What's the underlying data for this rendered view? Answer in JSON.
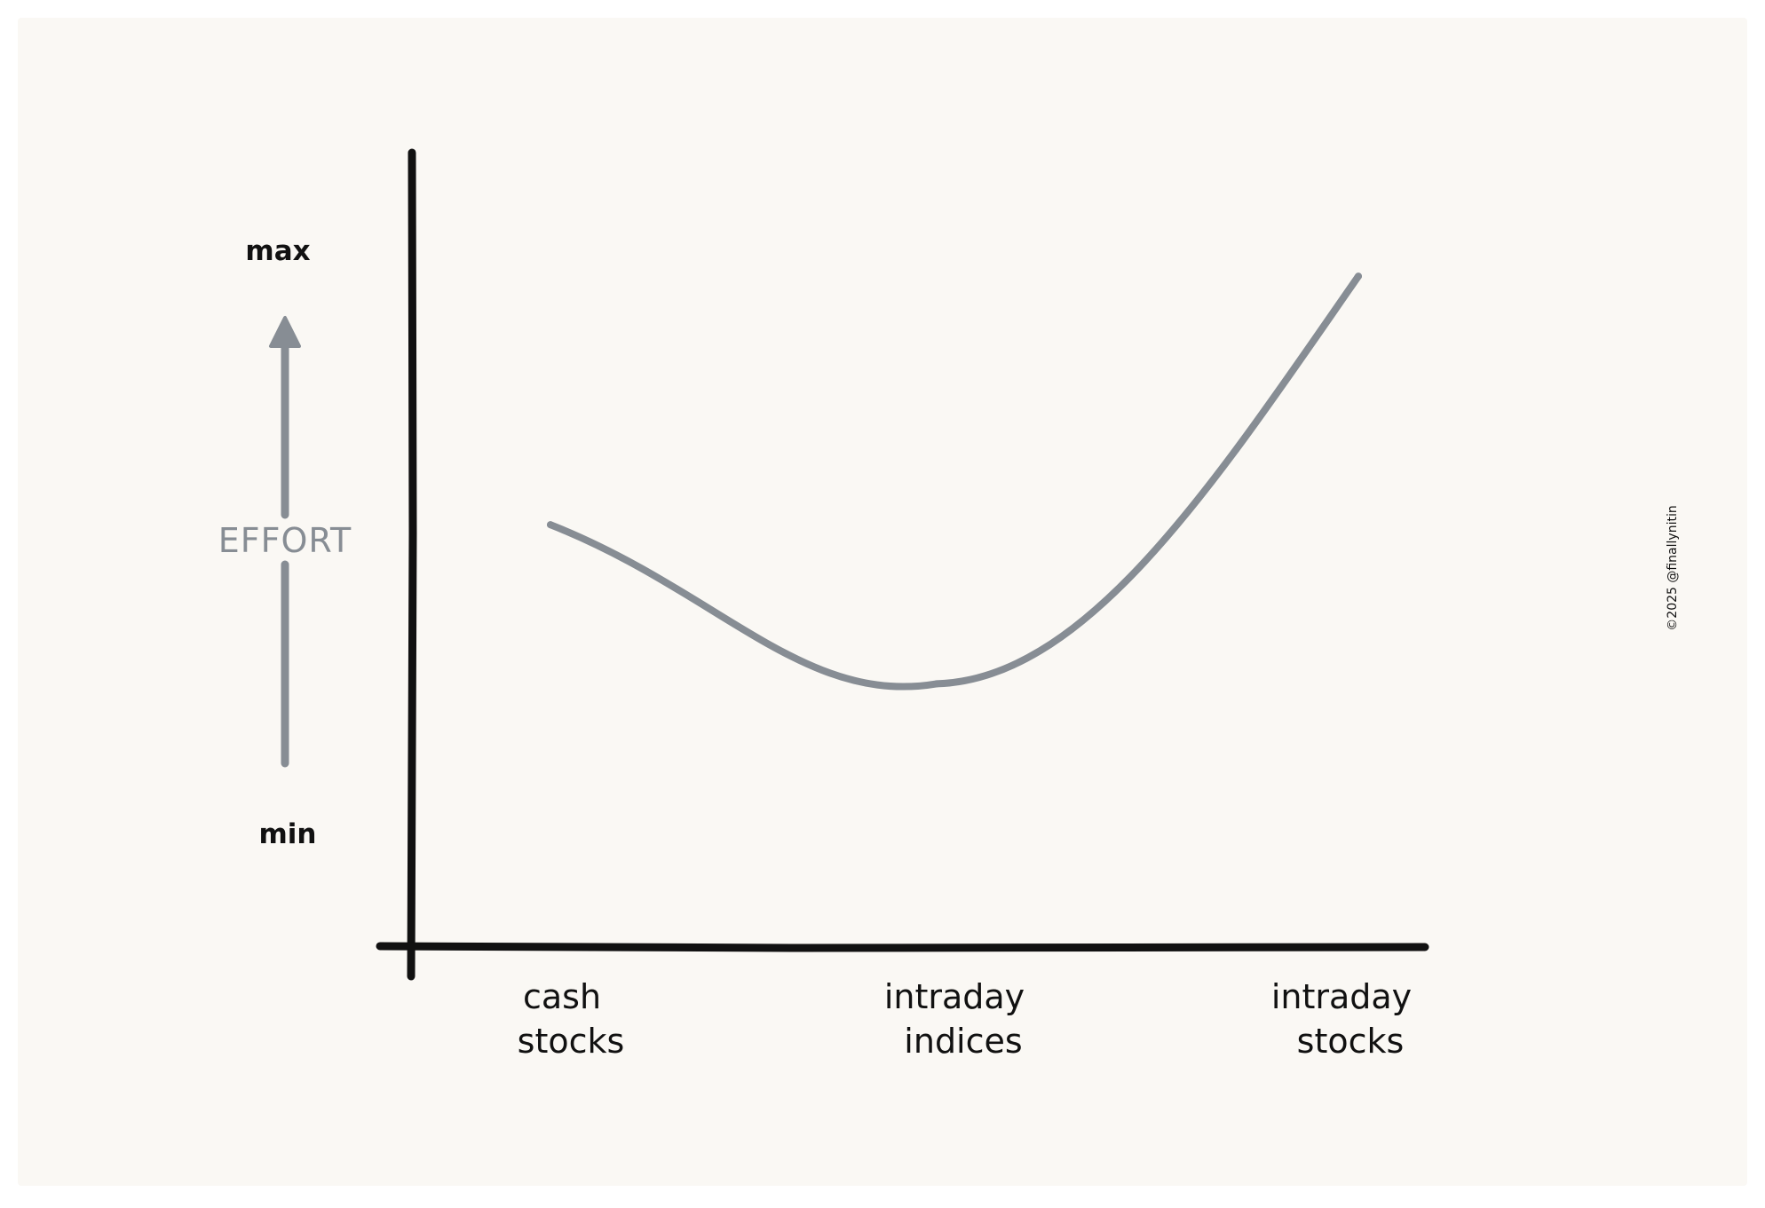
{
  "chart_data": {
    "type": "line",
    "categories": [
      "cash\nstocks",
      "intraday\nindices",
      "intraday\nstocks"
    ],
    "series": [
      {
        "values": [
          0.48,
          0.16,
          0.98
        ]
      }
    ],
    "ylabel": "EFFORT",
    "y_max_label": "max",
    "y_min_label": "min",
    "ylim": [
      0,
      1
    ],
    "grid": false,
    "legend": "none"
  },
  "watermark": "©2025 @finallynitin",
  "colors": {
    "panel_bg": "#faf8f4",
    "axis": "#111111",
    "series": "#878d94",
    "ylabel": "#878d94",
    "text": "#111111"
  }
}
